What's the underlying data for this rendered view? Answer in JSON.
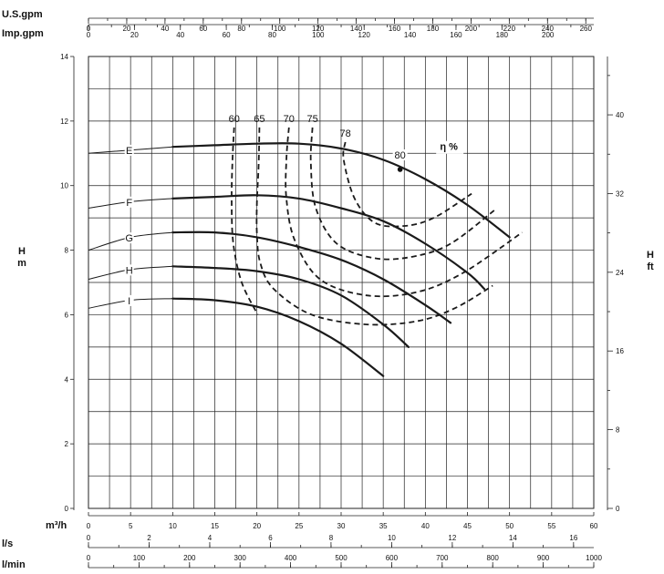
{
  "chart_data": {
    "type": "line",
    "title": "",
    "legend": "none",
    "grid": true,
    "xlabel": "m³/h",
    "ylabel": "H m",
    "ylabel_right": "H ft",
    "xlim": [
      0,
      60
    ],
    "ylim": [
      0,
      14
    ],
    "x_ticks": [
      "0",
      "5",
      "10",
      "15",
      "20",
      "25",
      "30",
      "35",
      "40",
      "45",
      "50",
      "55",
      "60"
    ],
    "y_ticks": [
      "0",
      "2",
      "4",
      "6",
      "8",
      "10",
      "12",
      "14"
    ],
    "right_axis": {
      "label": "H ft",
      "ticks": [
        "0",
        "8",
        "16",
        "24",
        "32",
        "40"
      ]
    },
    "top_axes": [
      {
        "label": "U.S.gpm",
        "factor": 4.4029,
        "ticks": [
          "0",
          "20",
          "40",
          "60",
          "80",
          "100",
          "120",
          "140",
          "160",
          "180",
          "200",
          "220",
          "240",
          "260"
        ]
      },
      {
        "label": "Imp.gpm",
        "factor": 3.6662,
        "ticks": [
          "0",
          "20",
          "40",
          "60",
          "80",
          "100",
          "120",
          "140",
          "160",
          "180",
          "200"
        ]
      }
    ],
    "bottom_axes": [
      {
        "label": "l/s",
        "factor": 0.27778,
        "ticks": [
          "0",
          "2",
          "4",
          "6",
          "8",
          "10",
          "12",
          "14",
          "16"
        ]
      },
      {
        "label": "l/min",
        "factor": 16.6667,
        "ticks": [
          "0",
          "100",
          "200",
          "300",
          "400",
          "500",
          "600",
          "700",
          "800",
          "900",
          "1000"
        ]
      }
    ],
    "series": [
      {
        "name": "E",
        "x": [
          0,
          5,
          10,
          15,
          20,
          25,
          30,
          35,
          40,
          45,
          50
        ],
        "y": [
          11.0,
          11.1,
          11.2,
          11.25,
          11.3,
          11.3,
          11.15,
          10.8,
          10.2,
          9.4,
          8.4
        ]
      },
      {
        "name": "F",
        "x": [
          0,
          5,
          10,
          15,
          20,
          25,
          30,
          35,
          40,
          45,
          47
        ],
        "y": [
          9.3,
          9.5,
          9.6,
          9.65,
          9.7,
          9.6,
          9.3,
          8.9,
          8.2,
          7.3,
          6.8
        ]
      },
      {
        "name": "G",
        "x": [
          0,
          5,
          10,
          15,
          20,
          25,
          30,
          35,
          40,
          43
        ],
        "y": [
          8.0,
          8.4,
          8.55,
          8.55,
          8.4,
          8.1,
          7.7,
          7.1,
          6.3,
          5.75
        ]
      },
      {
        "name": "H",
        "x": [
          0,
          5,
          10,
          15,
          20,
          25,
          30,
          35,
          38
        ],
        "y": [
          7.1,
          7.4,
          7.5,
          7.45,
          7.35,
          7.1,
          6.6,
          5.7,
          5.0
        ]
      },
      {
        "name": "I",
        "x": [
          0,
          5,
          10,
          15,
          20,
          25,
          30,
          35
        ],
        "y": [
          6.2,
          6.45,
          6.5,
          6.45,
          6.25,
          5.8,
          5.1,
          4.1
        ]
      }
    ],
    "efficiency": {
      "label": "η %",
      "curves": [
        {
          "name": "60",
          "x": [
            17.3,
            17.1,
            17.0,
            17.2,
            18.2,
            20.1
          ],
          "y": [
            11.8,
            10.8,
            9.5,
            8.2,
            7.0,
            6.0
          ]
        },
        {
          "name": "65",
          "x": [
            20.3,
            20.2,
            20.0,
            20.0,
            20.4,
            22.0,
            26.5,
            33.0,
            39.0,
            43.5,
            48.0
          ],
          "y": [
            11.8,
            10.6,
            9.5,
            8.5,
            7.6,
            6.8,
            6.0,
            5.7,
            5.8,
            6.2,
            6.9
          ]
        },
        {
          "name": "70",
          "x": [
            23.8,
            23.5,
            23.5,
            24.5,
            27.5,
            33.0,
            39.0,
            44.5,
            51.5
          ],
          "y": [
            11.8,
            10.8,
            9.6,
            8.3,
            7.1,
            6.6,
            6.7,
            7.3,
            8.55
          ]
        },
        {
          "name": "75",
          "x": [
            26.6,
            26.4,
            27.0,
            29.5,
            34.0,
            38.5,
            43.0,
            48.5
          ],
          "y": [
            11.8,
            10.7,
            9.3,
            8.2,
            7.75,
            7.8,
            8.2,
            9.3
          ]
        },
        {
          "name": "78",
          "x": [
            30.5,
            30.3,
            31.6,
            34.0,
            37.5,
            41.0,
            45.5
          ],
          "y": [
            11.35,
            10.8,
            9.6,
            8.85,
            8.75,
            9.0,
            9.75
          ]
        }
      ],
      "peak": {
        "label": "80",
        "x": 37,
        "y": 10.5
      }
    }
  }
}
